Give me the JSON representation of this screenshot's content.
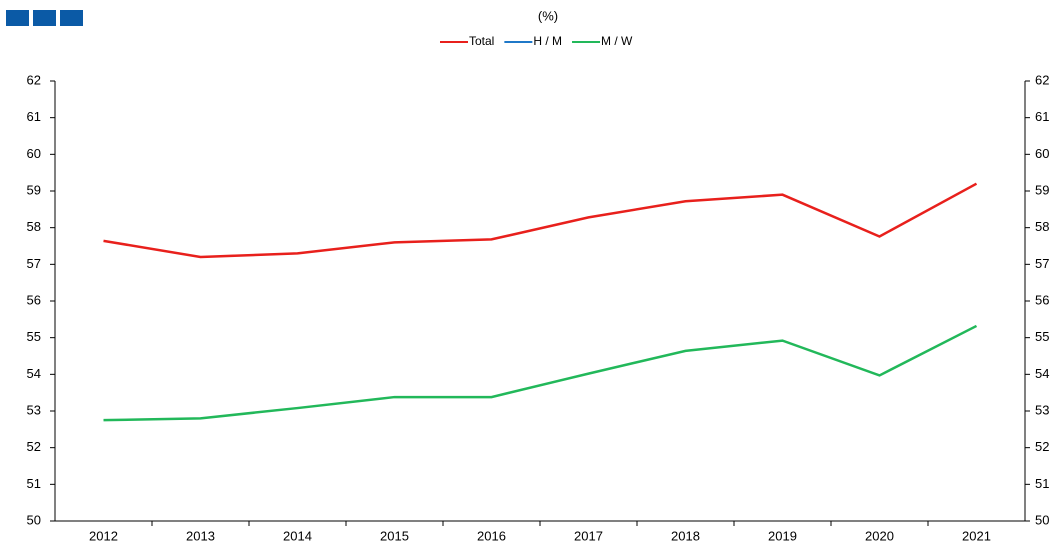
{
  "chart_data": {
    "type": "line",
    "subtitle": "(%)",
    "categories": [
      "2012",
      "2013",
      "2014",
      "2015",
      "2016",
      "2017",
      "2018",
      "2019",
      "2020",
      "2021"
    ],
    "series": [
      {
        "name": "Total",
        "color": "#e8201c",
        "values": [
          57.64,
          57.2,
          57.3,
          57.6,
          57.68,
          58.28,
          58.72,
          58.9,
          57.76,
          59.2
        ]
      },
      {
        "name": "H / M",
        "color": "#1f78c8",
        "values": [
          null,
          null,
          null,
          null,
          null,
          null,
          null,
          null,
          null,
          null
        ]
      },
      {
        "name": "M / W",
        "color": "#22b85a",
        "values": [
          52.75,
          52.8,
          53.08,
          53.38,
          53.38,
          54.02,
          54.64,
          54.92,
          53.97,
          55.32
        ]
      }
    ],
    "ylim": [
      50,
      62
    ],
    "yticks": [
      50,
      51,
      52,
      53,
      54,
      55,
      56,
      57,
      58,
      59,
      60,
      61,
      62
    ],
    "y2lim": [
      50,
      62
    ],
    "y2ticks": [
      50,
      51,
      52,
      53,
      54,
      55,
      56,
      57,
      58,
      59,
      60,
      61,
      62
    ],
    "legend": "top"
  }
}
